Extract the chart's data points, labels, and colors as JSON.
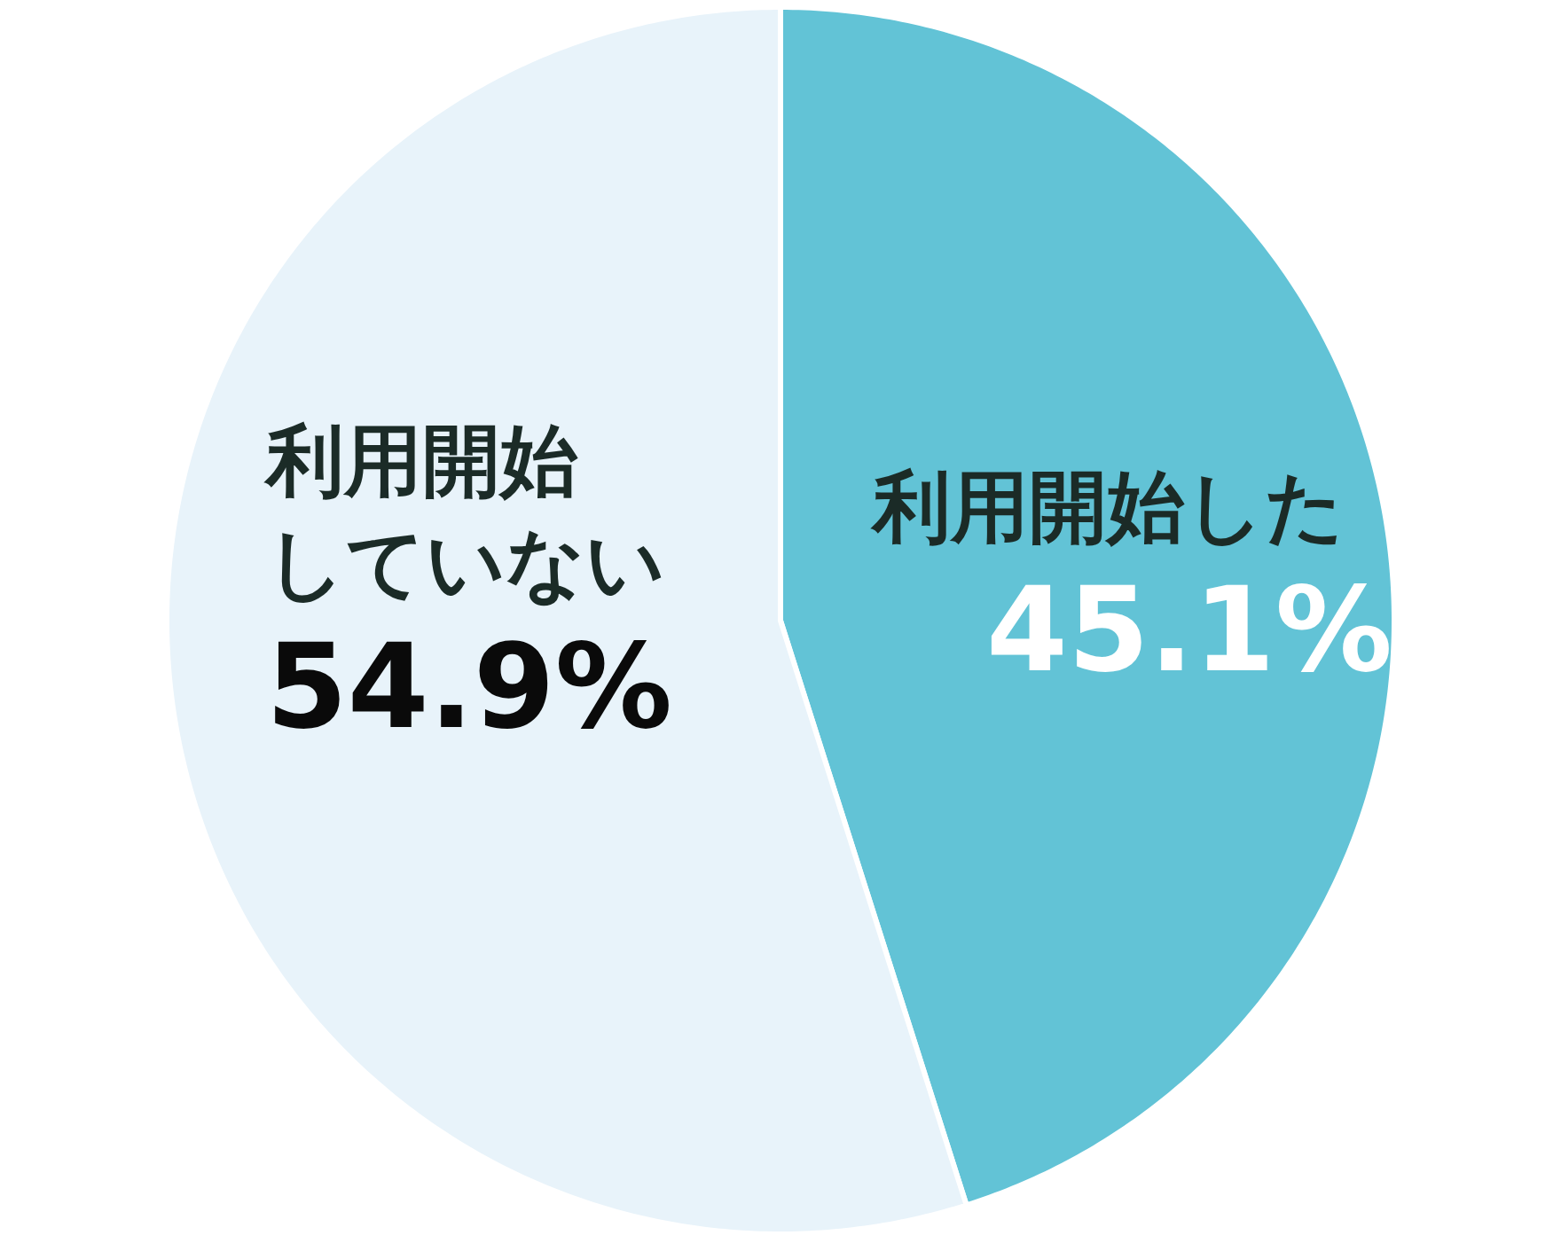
{
  "chart_data": {
    "type": "pie",
    "categories": [
      "利用開始した",
      "利用開始していない"
    ],
    "values": [
      45.1,
      54.9
    ],
    "value_labels": [
      "45.1%",
      "54.9%"
    ],
    "colors": [
      "#62c3d6",
      "#e8f3fa"
    ]
  }
}
